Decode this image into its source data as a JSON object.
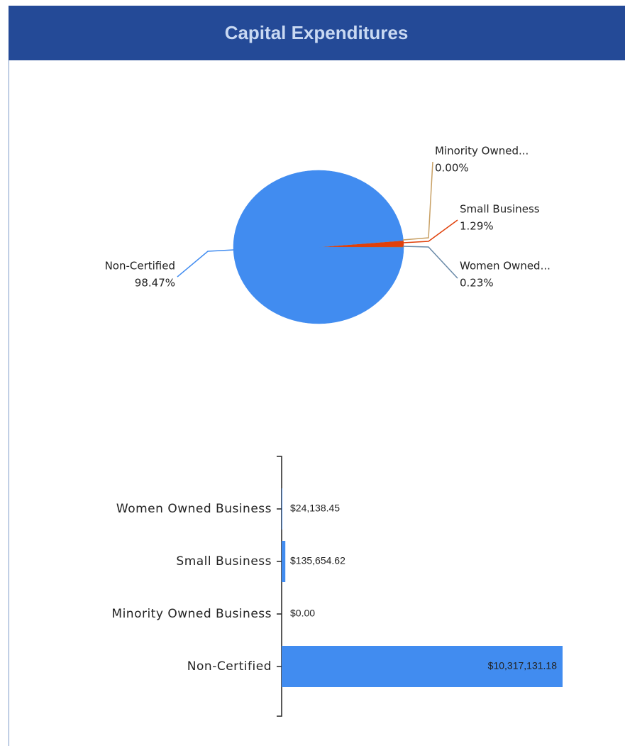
{
  "title": "Capital Expenditures",
  "chart_data": [
    {
      "type": "pie",
      "categories": [
        "Non-Certified",
        "Minority Owned...",
        "Small Business",
        "Women Owned..."
      ],
      "values": [
        98.47,
        0.0,
        1.29,
        0.23
      ],
      "value_labels": [
        "98.47%",
        "0.00%",
        "1.29%",
        "0.23%"
      ],
      "colors": [
        "#418cf0",
        "#c8a064",
        "#e0400a",
        "#6a8aa8"
      ]
    },
    {
      "type": "hbar",
      "categories": [
        "Women Owned Business",
        "Small Business",
        "Minority Owned Business",
        "Non-Certified"
      ],
      "values": [
        24138.45,
        135654.62,
        0.0,
        10317131.18
      ],
      "value_labels": [
        "$24,138.45",
        "$135,654.62",
        "$0.00",
        "$10,317,131.18"
      ],
      "color": "#418cf0"
    }
  ]
}
